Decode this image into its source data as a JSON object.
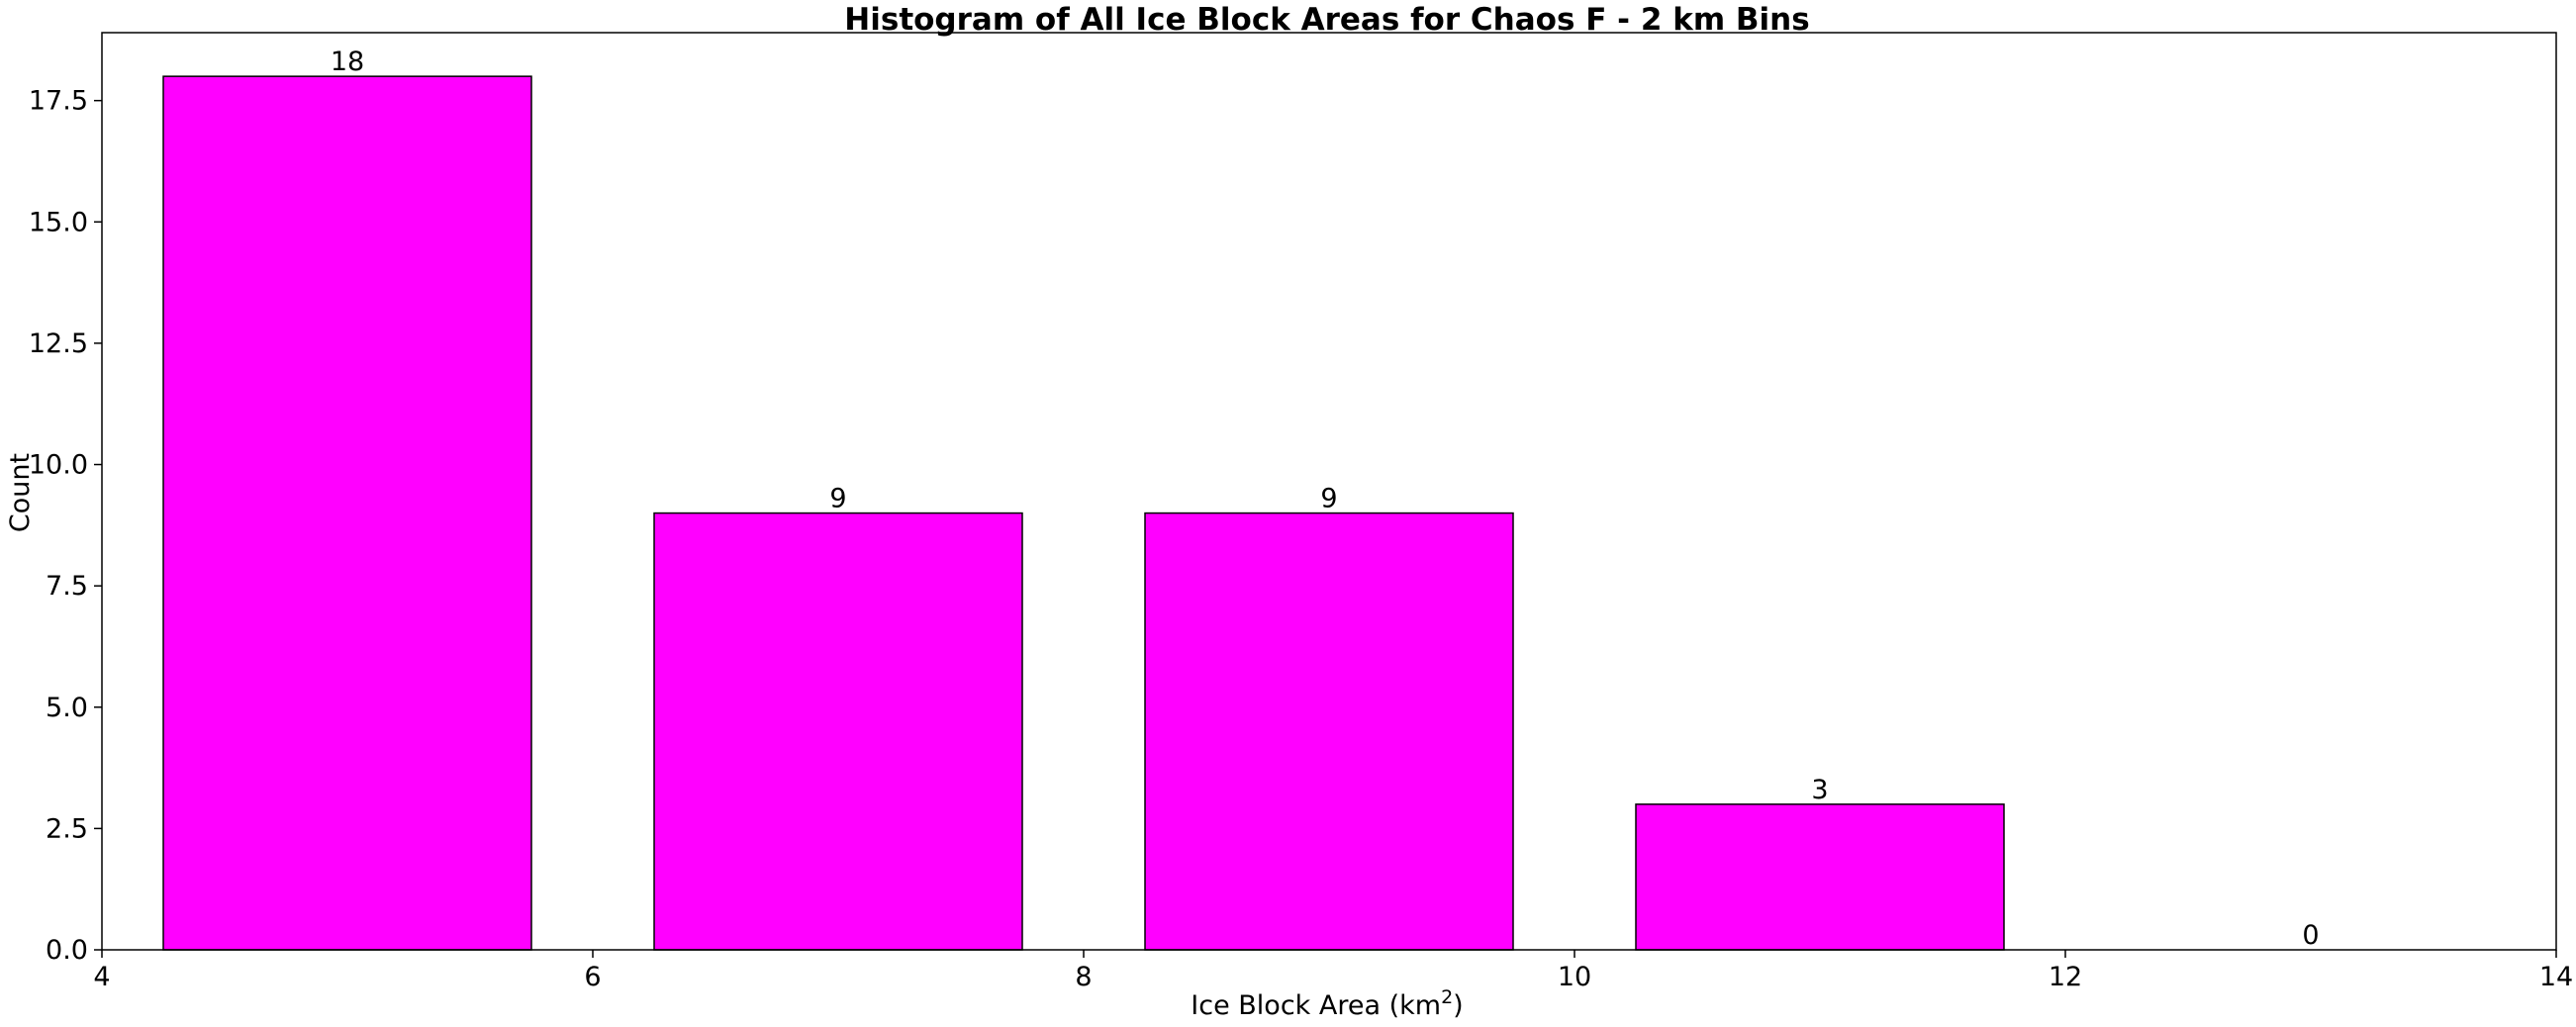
{
  "chart_data": {
    "type": "bar",
    "title": "Histogram of All Ice Block Areas for Chaos F - 2 km Bins",
    "xlabel_main": "Ice Block Area (km",
    "xlabel_sup": "2",
    "xlabel_close": ")",
    "ylabel": "Count",
    "bins": [
      {
        "start": 4,
        "end": 6,
        "value": 18,
        "label": "18"
      },
      {
        "start": 6,
        "end": 8,
        "value": 9,
        "label": "9"
      },
      {
        "start": 8,
        "end": 10,
        "value": 9,
        "label": "9"
      },
      {
        "start": 10,
        "end": 12,
        "value": 3,
        "label": "3"
      },
      {
        "start": 12,
        "end": 14,
        "value": 0,
        "label": "0"
      }
    ],
    "bar_width_fraction": 0.75,
    "xlim": [
      4,
      14
    ],
    "ylim": [
      0,
      18.9
    ],
    "xticks": [
      4,
      6,
      8,
      10,
      12,
      14
    ],
    "xtick_labels": [
      "4",
      "6",
      "8",
      "10",
      "12",
      "14"
    ],
    "yticks": [
      0,
      2.5,
      5,
      7.5,
      10,
      12.5,
      15,
      17.5
    ],
    "ytick_labels": [
      "0.0",
      "2.5",
      "5.0",
      "7.5",
      "10.0",
      "12.5",
      "15.0",
      "17.5"
    ],
    "grid": false,
    "colors": {
      "bar_fill": "#ff00ff",
      "bar_edge": "#000000",
      "axes": "#000000",
      "background": "#ffffff"
    }
  }
}
